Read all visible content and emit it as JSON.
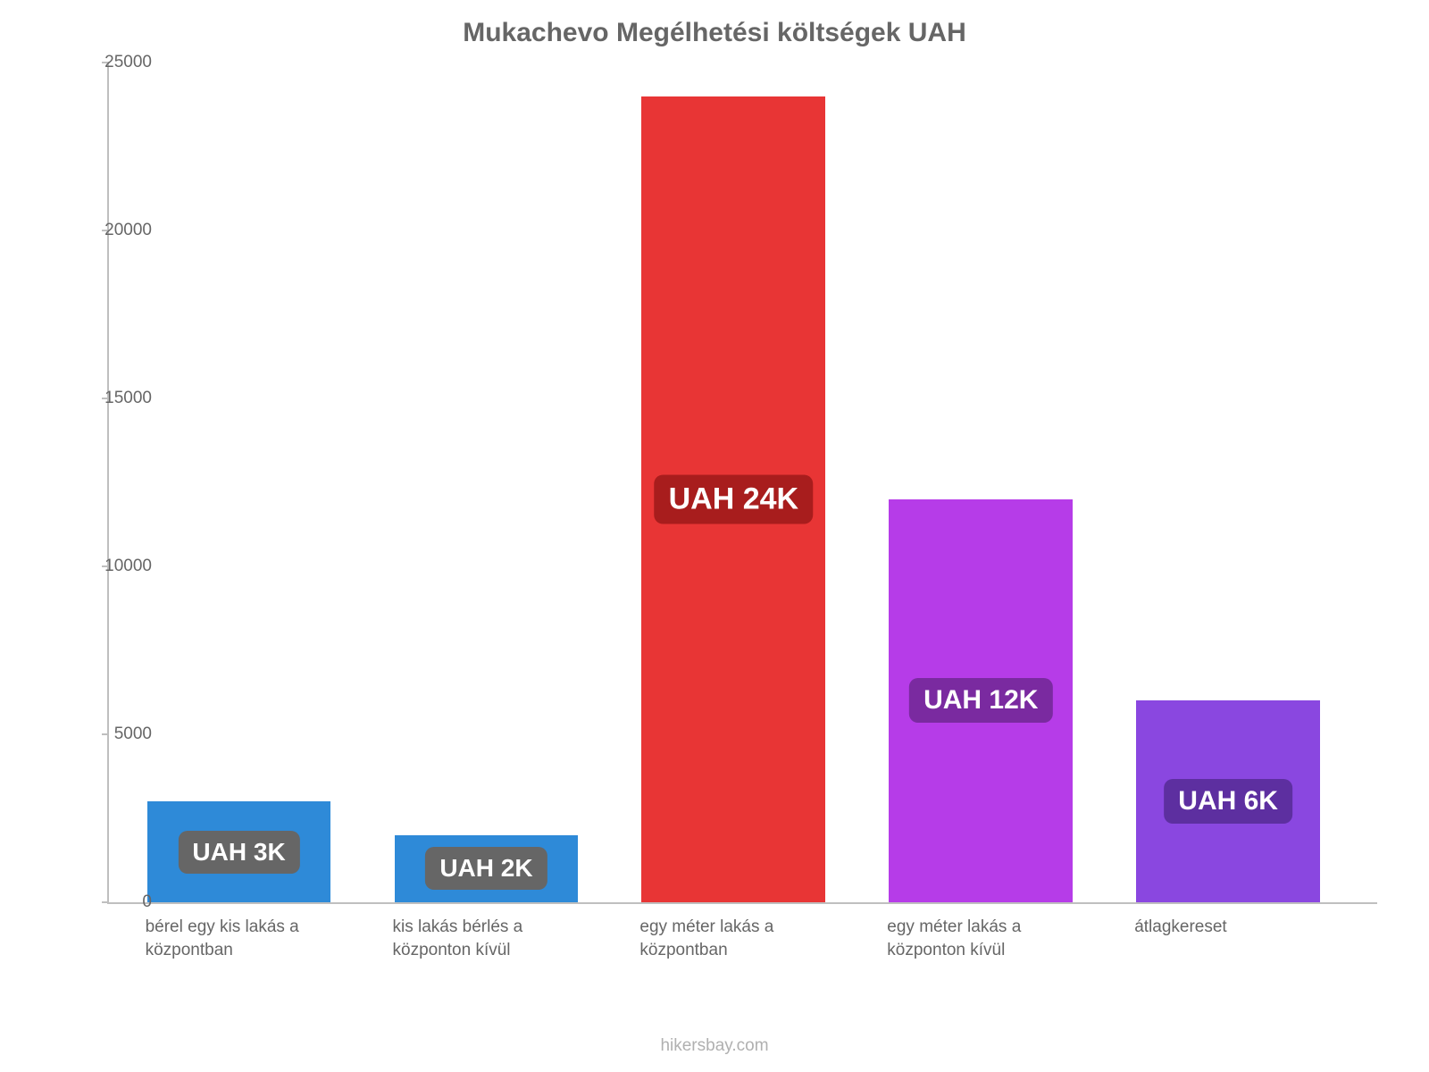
{
  "chart": {
    "type": "bar",
    "title": "Mukachevo Megélhetési költségek UAH",
    "title_fontsize": 30,
    "title_color": "#666666",
    "background_color": "#ffffff",
    "axis_color": "#bfbfbf",
    "tick_color": "#666666",
    "tick_fontsize": 19,
    "category_fontsize": 19,
    "ylim_min": 0,
    "ylim_max": 25000,
    "ytick_step": 5000,
    "yticks": [
      {
        "value": 0,
        "label": "0"
      },
      {
        "value": 5000,
        "label": "5000"
      },
      {
        "value": 10000,
        "label": "10000"
      },
      {
        "value": 15000,
        "label": "15000"
      },
      {
        "value": 20000,
        "label": "20000"
      },
      {
        "value": 25000,
        "label": "25000"
      }
    ],
    "bar_width_pct": 14.5,
    "bar_gap_pct": 5,
    "first_bar_left_pct": 3,
    "series": [
      {
        "category": "bérel egy kis lakás a központban",
        "value": 3000,
        "value_label": "UAH 3K",
        "bar_color": "#2e8ad8",
        "badge_bg": "#666666",
        "badge_fontsize": 28
      },
      {
        "category": "kis lakás bérlés a központon kívül",
        "value": 2000,
        "value_label": "UAH 2K",
        "bar_color": "#2e8ad8",
        "badge_bg": "#666666",
        "badge_fontsize": 28
      },
      {
        "category": "egy méter lakás a központban",
        "value": 24000,
        "value_label": "UAH 24K",
        "bar_color": "#e83535",
        "badge_bg": "#a81d1d",
        "badge_fontsize": 34
      },
      {
        "category": "egy méter lakás a központon kívül",
        "value": 12000,
        "value_label": "UAH 12K",
        "bar_color": "#b63ce8",
        "badge_bg": "#7a2aa0",
        "badge_fontsize": 30
      },
      {
        "category": "átlagkereset",
        "value": 6000,
        "value_label": "UAH 6K",
        "bar_color": "#8a47e0",
        "badge_bg": "#5d2fa0",
        "badge_fontsize": 30
      }
    ],
    "credit": "hikersbay.com",
    "credit_color": "#b0b0b0",
    "credit_fontsize": 19
  }
}
